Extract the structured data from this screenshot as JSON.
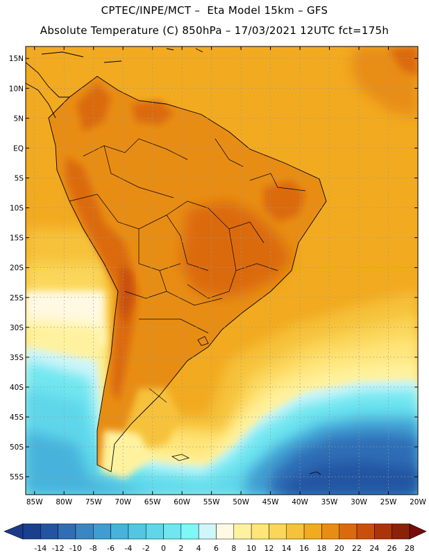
{
  "header": {
    "line1": "CPTEC/INPE/MCT –  Eta Model 15km – GFS",
    "line2": "Absolute Temperature (C) 850hPa – 17/03/2021 12UTC fct=175h"
  },
  "axes": {
    "lat_labels": [
      "15N",
      "10N",
      "5N",
      "EQ",
      "5S",
      "10S",
      "15S",
      "20S",
      "25S",
      "30S",
      "35S",
      "40S",
      "45S",
      "50S",
      "55S"
    ],
    "lat_values": [
      15,
      10,
      5,
      0,
      -5,
      -10,
      -15,
      -20,
      -25,
      -30,
      -35,
      -40,
      -45,
      -50,
      -55
    ],
    "lon_labels": [
      "85W",
      "80W",
      "75W",
      "70W",
      "65W",
      "60W",
      "55W",
      "50W",
      "45W",
      "40W",
      "35W",
      "30W",
      "25W",
      "20W"
    ],
    "lon_values": [
      -85,
      -80,
      -75,
      -70,
      -65,
      -60,
      -55,
      -50,
      -45,
      -40,
      -35,
      -30,
      -25,
      -20
    ],
    "lat_range": [
      -58,
      17
    ],
    "lon_range": [
      -86.5,
      -20
    ]
  },
  "colorbar": {
    "labels": [
      "-14",
      "-12",
      "-10",
      "-8",
      "-6",
      "-4",
      "-2",
      "0",
      "2",
      "4",
      "6",
      "8",
      "10",
      "12",
      "14",
      "16",
      "18",
      "20",
      "22",
      "24",
      "26",
      "28"
    ],
    "colors": [
      "#1a3f8f",
      "#2354a3",
      "#2f6db5",
      "#3a86c4",
      "#3f9dd1",
      "#47b3dc",
      "#52c6e3",
      "#5fd6ea",
      "#6fe6f0",
      "#7ef7f7",
      "#cff6f9",
      "#fff9e3",
      "#fff29f",
      "#ffe57a",
      "#fbd65a",
      "#f6c23b",
      "#f2aa20",
      "#e88d14",
      "#db6a0f",
      "#c8500c",
      "#aa3509",
      "#8a2207"
    ],
    "low_arrow_color": "#1b3a8a",
    "high_arrow_color": "#7a0a0a"
  },
  "map": {
    "ocean_base_color": "#f2aa20",
    "land_base_color": "#e88d14"
  }
}
